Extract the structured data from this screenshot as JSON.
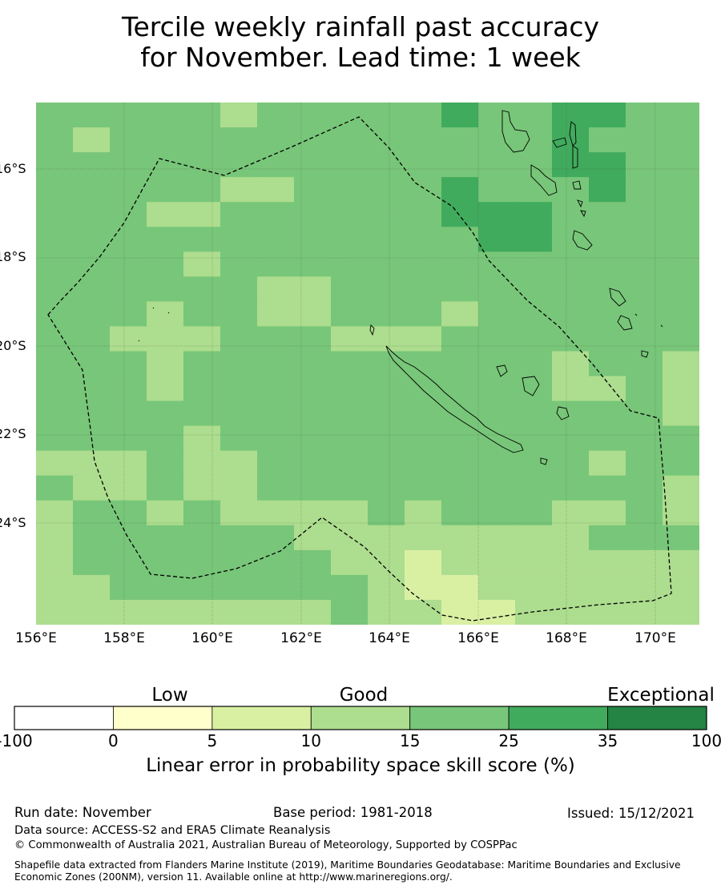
{
  "title": {
    "line1": "Tercile weekly rainfall past accuracy",
    "line2": "for November. Lead time: 1 week"
  },
  "map": {
    "lon_labels": [
      "156°E",
      "158°E",
      "160°E",
      "162°E",
      "164°E",
      "166°E",
      "168°E",
      "170°E"
    ],
    "lat_labels": [
      "16°S",
      "18°S",
      "20°S",
      "22°S",
      "24°S"
    ],
    "color_scale": [
      "#ffffff",
      "#ffffcc",
      "#d9f0a3",
      "#addd8e",
      "#78c679",
      "#41ab5d",
      "#238443"
    ],
    "skill_grid": [
      [
        4,
        4,
        4,
        4,
        4,
        3,
        4,
        4,
        4,
        4,
        4,
        5,
        4,
        4,
        5,
        5,
        4,
        4
      ],
      [
        4,
        3,
        4,
        4,
        4,
        4,
        4,
        4,
        4,
        4,
        4,
        4,
        4,
        4,
        5,
        4,
        4,
        4
      ],
      [
        4,
        4,
        4,
        4,
        4,
        4,
        4,
        4,
        4,
        4,
        4,
        4,
        4,
        4,
        5,
        5,
        4,
        4
      ],
      [
        4,
        4,
        4,
        4,
        4,
        3,
        3,
        4,
        4,
        4,
        4,
        5,
        4,
        4,
        4,
        5,
        4,
        4
      ],
      [
        4,
        4,
        4,
        3,
        3,
        4,
        4,
        4,
        4,
        4,
        4,
        5,
        5,
        5,
        4,
        4,
        4,
        4
      ],
      [
        4,
        4,
        4,
        4,
        4,
        4,
        4,
        4,
        4,
        4,
        4,
        4,
        5,
        5,
        4,
        4,
        4,
        4
      ],
      [
        4,
        4,
        4,
        4,
        3,
        4,
        4,
        4,
        4,
        4,
        4,
        4,
        4,
        4,
        4,
        4,
        4,
        4
      ],
      [
        4,
        4,
        4,
        4,
        4,
        4,
        3,
        3,
        4,
        4,
        4,
        4,
        4,
        4,
        4,
        4,
        4,
        4
      ],
      [
        4,
        4,
        4,
        3,
        4,
        4,
        3,
        3,
        4,
        4,
        4,
        3,
        4,
        4,
        4,
        4,
        4,
        4
      ],
      [
        4,
        4,
        3,
        3,
        3,
        4,
        4,
        4,
        3,
        3,
        3,
        4,
        4,
        4,
        4,
        4,
        4,
        4
      ],
      [
        4,
        4,
        4,
        3,
        4,
        4,
        4,
        4,
        4,
        4,
        4,
        4,
        4,
        4,
        3,
        4,
        4,
        3
      ],
      [
        4,
        4,
        4,
        3,
        4,
        4,
        4,
        4,
        4,
        4,
        4,
        4,
        4,
        4,
        3,
        3,
        4,
        3
      ],
      [
        4,
        4,
        4,
        4,
        4,
        4,
        4,
        4,
        4,
        4,
        4,
        4,
        4,
        4,
        4,
        4,
        4,
        3
      ],
      [
        4,
        4,
        4,
        4,
        3,
        4,
        4,
        4,
        4,
        4,
        4,
        4,
        4,
        4,
        4,
        4,
        4,
        4
      ],
      [
        3,
        3,
        3,
        4,
        3,
        3,
        4,
        4,
        4,
        4,
        4,
        4,
        4,
        4,
        4,
        3,
        4,
        4
      ],
      [
        4,
        3,
        3,
        4,
        3,
        3,
        4,
        4,
        4,
        4,
        4,
        4,
        4,
        4,
        4,
        4,
        4,
        3
      ],
      [
        3,
        4,
        4,
        3,
        4,
        3,
        3,
        3,
        3,
        4,
        3,
        4,
        4,
        4,
        3,
        3,
        4,
        3
      ],
      [
        3,
        4,
        4,
        4,
        4,
        4,
        4,
        3,
        3,
        3,
        3,
        3,
        3,
        3,
        3,
        4,
        4,
        4
      ],
      [
        3,
        4,
        4,
        4,
        4,
        4,
        4,
        4,
        3,
        3,
        2,
        3,
        3,
        3,
        3,
        3,
        3,
        3
      ],
      [
        3,
        3,
        4,
        4,
        4,
        4,
        4,
        4,
        4,
        3,
        2,
        2,
        3,
        3,
        3,
        3,
        3,
        3
      ],
      [
        3,
        3,
        3,
        3,
        3,
        3,
        3,
        3,
        4,
        3,
        3,
        2,
        2,
        3,
        3,
        3,
        3,
        3
      ]
    ]
  },
  "colorbar": {
    "categories": [
      "Low",
      "Good",
      "Exceptional"
    ],
    "ticks": [
      "-100",
      "0",
      "5",
      "10",
      "15",
      "25",
      "35",
      "100"
    ],
    "colors": [
      "#ffffff",
      "#ffffcc",
      "#d9f0a3",
      "#addd8e",
      "#78c679",
      "#41ab5d",
      "#238443"
    ],
    "title": "Linear error in probability space skill score (%)"
  },
  "footer": {
    "run_date": "Run date: November",
    "base_period": "Base period: 1981-2018",
    "issued": "Issued: 15/12/2021",
    "data_source": "Data source: ACCESS-S2 and ERA5 Climate Reanalysis",
    "copyright": "© Commonwealth of Australia 2021, Australian Bureau of Meteorology, Supported by COSPPac",
    "shapefile": "Shapefile data extracted from Flanders Marine Institute (2019), Maritime Boundaries Geodatabase: Maritime Boundaries and Exclusive Economic Zones (200NM), version 11. Available online at http://www.marineregions.org/."
  }
}
